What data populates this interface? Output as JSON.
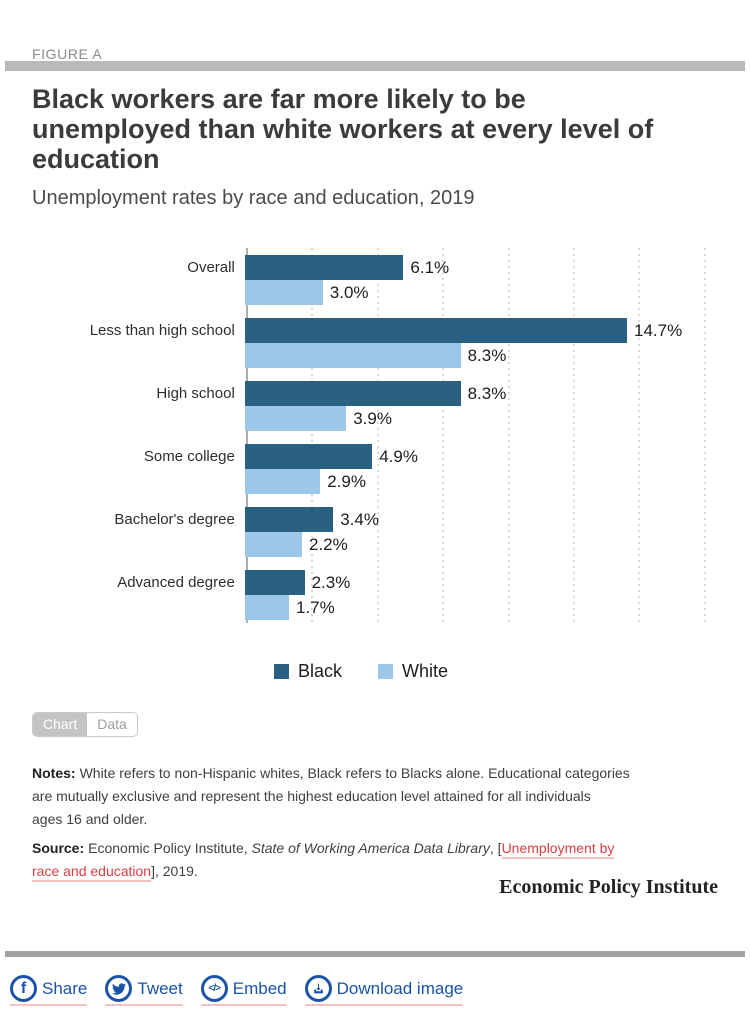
{
  "figure_label": "FIGURE A",
  "title": "Black workers are far more likely to be\nunemployed than white workers at every level of\neducation",
  "subtitle": "Unemployment rates by race and education, 2019",
  "chart_data": {
    "type": "bar",
    "orientation": "horizontal",
    "title": "Unemployment rates by race and education, 2019",
    "categories": [
      "Overall",
      "Less than high school",
      "High school",
      "Some college",
      "Bachelor's degree",
      "Advanced degree"
    ],
    "series": [
      {
        "name": "Black",
        "color": "#2a6183",
        "values": [
          6.1,
          14.7,
          8.3,
          4.9,
          3.4,
          2.3
        ]
      },
      {
        "name": "White",
        "color": "#9cc7e8",
        "values": [
          3.0,
          8.3,
          3.9,
          2.9,
          2.2,
          1.7
        ]
      }
    ],
    "value_label_format": "{value}%",
    "xlim": [
      0,
      18.2
    ],
    "gridlines_percent": [
      2.5,
      5,
      7.5,
      10,
      12.5,
      15,
      17.5
    ],
    "grid_style": "dotted-vertical",
    "legend_position": "bottom-center"
  },
  "tabs": {
    "chart_label": "Chart",
    "data_label": "Data",
    "active": "Chart"
  },
  "notes": {
    "label": "Notes:",
    "text": "White refers to non-Hispanic whites, Black refers to Blacks alone. Educational categories\nare mutually exclusive and represent the highest education level attained for all individuals\nages 16 and older."
  },
  "source": {
    "label": "Source:",
    "pre": "Economic Policy Institute, ",
    "italic": "State of Working America Data Library",
    "mid": ", [",
    "link_line1": "Unemployment by",
    "link_line2": "race and education",
    "post": "], 2019."
  },
  "branding": "Economic Policy Institute",
  "footer": {
    "links": [
      {
        "icon": "facebook-icon",
        "label": "Share"
      },
      {
        "icon": "twitter-icon",
        "label": "Tweet"
      },
      {
        "icon": "embed-icon",
        "label": "Embed"
      },
      {
        "icon": "download-icon",
        "label": "Download image"
      }
    ]
  },
  "colors": {
    "series_black": "#2a6183",
    "series_white": "#9cc7e8",
    "link_red": "#de3e42",
    "link_underline": "#f3bfc0",
    "footer_blue": "#1a53a8",
    "top_bar_gray": "#b9b9b9",
    "divider_gray": "#a3a3a3"
  }
}
